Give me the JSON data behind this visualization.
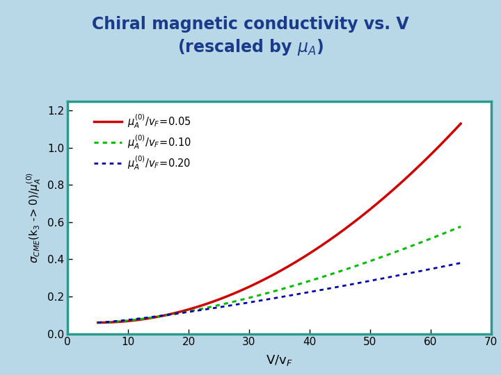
{
  "title_line1": "Chiral magnetic conductivity vs. V",
  "title_line2": "(rescaled by μ_A)",
  "title_color": "#1a3a8a",
  "xlabel": "V/v_F",
  "xlim": [
    0,
    70
  ],
  "ylim": [
    0,
    1.25
  ],
  "xticks": [
    0,
    10,
    20,
    30,
    40,
    50,
    60,
    70
  ],
  "yticks": [
    0,
    0.2,
    0.4,
    0.6,
    0.8,
    1.0,
    1.2
  ],
  "background_outer": "#b8d8e8",
  "background_plot": "#ffffff",
  "border_color": "#2a9a8a",
  "series": [
    {
      "alpha": 0.05,
      "color": "#cc0000",
      "linestyle": "solid",
      "linewidth": 2.5
    },
    {
      "alpha": 0.1,
      "color": "#00bb00",
      "linestyle": "dotted",
      "linewidth": 2.2
    },
    {
      "alpha": 0.2,
      "color": "#0000aa",
      "linestyle": "dotted",
      "linewidth": 2.0
    }
  ]
}
